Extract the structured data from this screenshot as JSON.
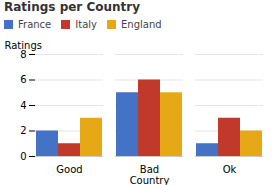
{
  "chart_data": {
    "type": "bar",
    "title": "Ratings per Country",
    "xlabel": "Country",
    "ylabel": "Ratings",
    "categories": [
      "Good",
      "Bad",
      "Ok"
    ],
    "series": [
      {
        "name": "France",
        "values": [
          2,
          5,
          1
        ],
        "color": "#4472c4"
      },
      {
        "name": "Italy",
        "values": [
          1,
          6,
          3
        ],
        "color": "#c0392b"
      },
      {
        "name": "England",
        "values": [
          3,
          5,
          2
        ],
        "color": "#e6a817"
      }
    ],
    "ylim": [
      0,
      8
    ],
    "yticks": [
      0,
      2,
      4,
      6,
      8
    ],
    "grid": true,
    "legend": "top"
  }
}
